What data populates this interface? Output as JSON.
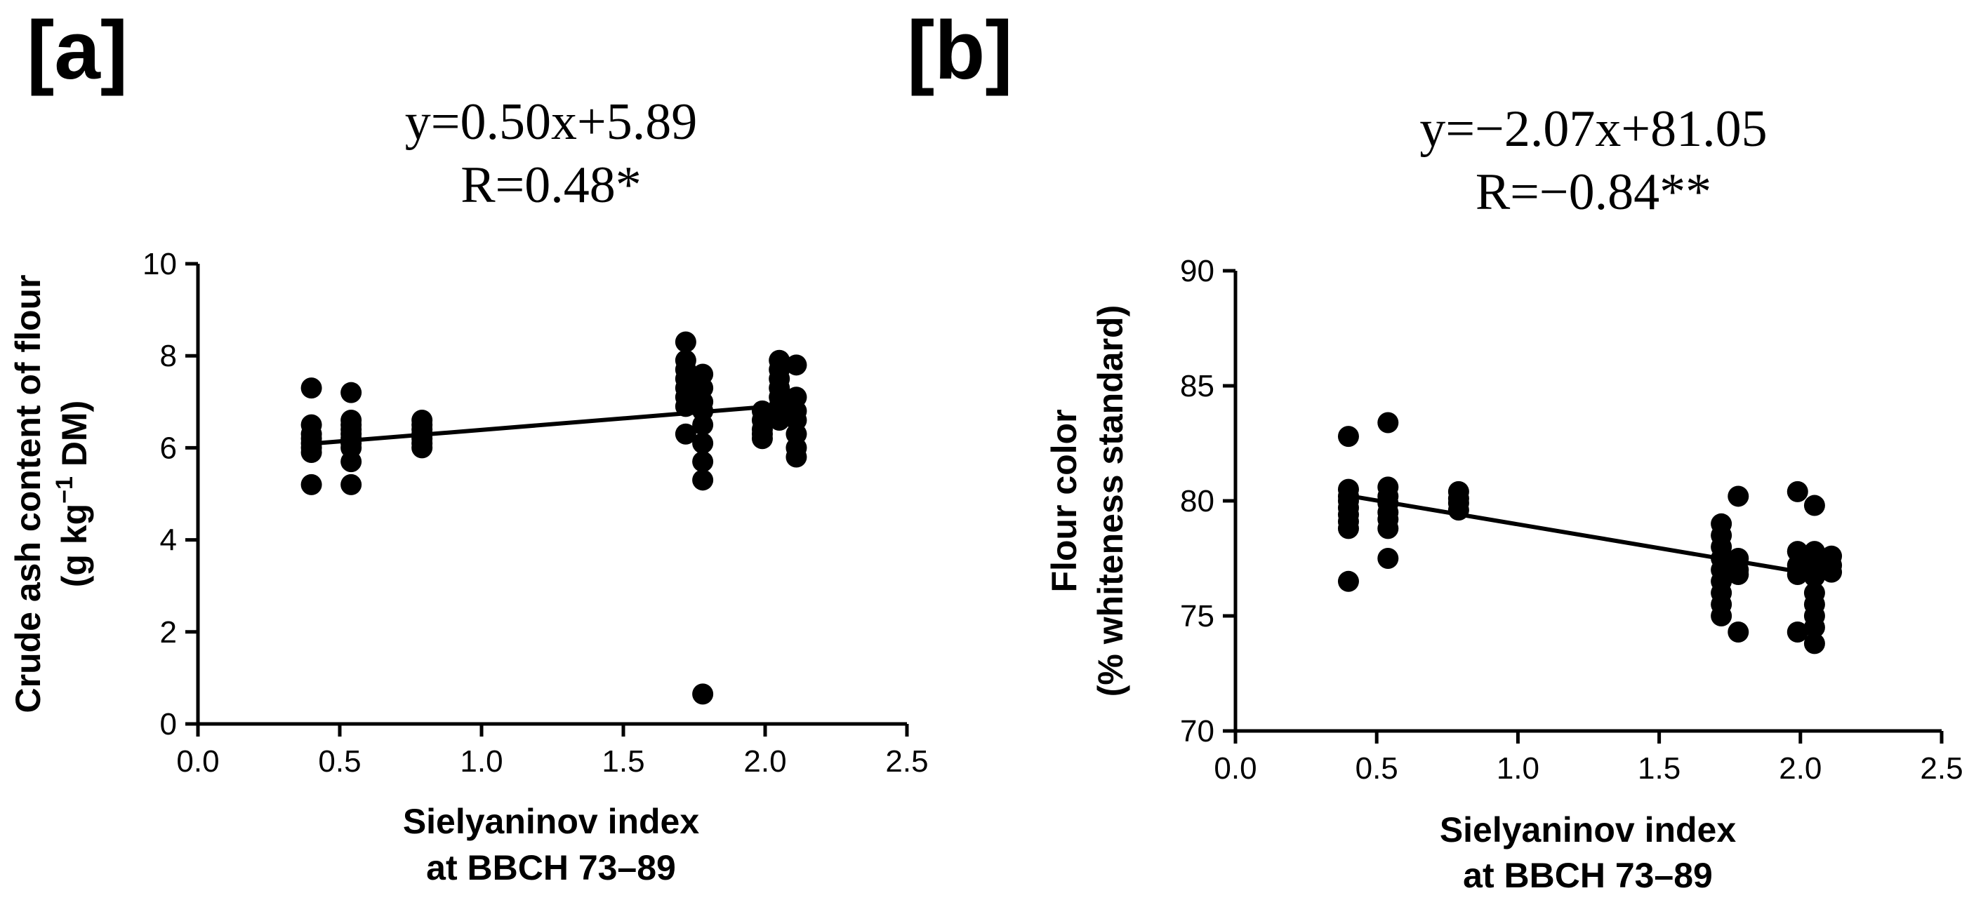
{
  "chart_data": [
    {
      "type": "scatter",
      "panel_label": "[a]",
      "equation": "y=0.50x+5.89",
      "correlation": "R=0.48*",
      "xlabel_line1": "Sielyaninov index",
      "xlabel_line2": "at BBCH 73–89",
      "ylabel_line1": "Crude ash content of flour",
      "ylabel_line2_pre": "(g kg",
      "ylabel_line2_sup": "−1",
      "ylabel_line2_post": " DM)",
      "xlim": [
        0,
        2.5
      ],
      "ylim": [
        0,
        10
      ],
      "xticks": [
        0,
        0.5,
        1.0,
        1.5,
        2.0,
        2.5
      ],
      "xtick_labels": [
        "0.0",
        "0.5",
        "1.0",
        "1.5",
        "2.0",
        "2.5"
      ],
      "yticks": [
        0,
        2,
        4,
        6,
        8,
        10
      ],
      "ytick_labels": [
        "0",
        "2",
        "4",
        "6",
        "8",
        "10"
      ],
      "fit": {
        "slope": 0.5,
        "intercept": 5.89,
        "x_range": [
          0.4,
          2.11
        ]
      },
      "points": [
        [
          0.4,
          7.3
        ],
        [
          0.4,
          6.5
        ],
        [
          0.4,
          6.3
        ],
        [
          0.4,
          6.2
        ],
        [
          0.4,
          6.1
        ],
        [
          0.4,
          6.0
        ],
        [
          0.4,
          5.9
        ],
        [
          0.4,
          5.2
        ],
        [
          0.54,
          7.2
        ],
        [
          0.54,
          6.6
        ],
        [
          0.54,
          6.5
        ],
        [
          0.54,
          6.4
        ],
        [
          0.54,
          6.3
        ],
        [
          0.54,
          6.2
        ],
        [
          0.54,
          6.1
        ],
        [
          0.54,
          6.0
        ],
        [
          0.54,
          5.7
        ],
        [
          0.54,
          5.2
        ],
        [
          0.79,
          6.6
        ],
        [
          0.79,
          6.5
        ],
        [
          0.79,
          6.4
        ],
        [
          0.79,
          6.3
        ],
        [
          0.79,
          6.2
        ],
        [
          0.79,
          6.1
        ],
        [
          0.79,
          6.0
        ],
        [
          1.72,
          8.3
        ],
        [
          1.72,
          7.9
        ],
        [
          1.72,
          7.7
        ],
        [
          1.72,
          7.5
        ],
        [
          1.72,
          7.3
        ],
        [
          1.72,
          7.1
        ],
        [
          1.72,
          6.9
        ],
        [
          1.72,
          6.3
        ],
        [
          1.78,
          7.6
        ],
        [
          1.78,
          7.3
        ],
        [
          1.78,
          7.0
        ],
        [
          1.78,
          6.8
        ],
        [
          1.78,
          6.5
        ],
        [
          1.78,
          6.1
        ],
        [
          1.78,
          5.7
        ],
        [
          1.78,
          5.3
        ],
        [
          1.78,
          0.65
        ],
        [
          1.99,
          6.8
        ],
        [
          1.99,
          6.6
        ],
        [
          1.99,
          6.4
        ],
        [
          1.99,
          6.3
        ],
        [
          1.99,
          6.2
        ],
        [
          2.05,
          7.9
        ],
        [
          2.05,
          7.7
        ],
        [
          2.05,
          7.5
        ],
        [
          2.05,
          7.3
        ],
        [
          2.05,
          7.1
        ],
        [
          2.05,
          6.9
        ],
        [
          2.05,
          6.6
        ],
        [
          2.11,
          7.8
        ],
        [
          2.11,
          7.1
        ],
        [
          2.11,
          6.8
        ],
        [
          2.11,
          6.6
        ],
        [
          2.11,
          6.3
        ],
        [
          2.11,
          6.0
        ],
        [
          2.11,
          5.8
        ]
      ]
    },
    {
      "type": "scatter",
      "panel_label": "[b]",
      "equation": "y=−2.07x+81.05",
      "correlation": "R=−0.84**",
      "xlabel_line1": "Sielyaninov index",
      "xlabel_line2": "at BBCH 73–89",
      "ylabel_line1": "Flour color",
      "ylabel_line2": "(% whiteness standard)",
      "xlim": [
        0,
        2.5
      ],
      "ylim": [
        70,
        90
      ],
      "xticks": [
        0,
        0.5,
        1.0,
        1.5,
        2.0,
        2.5
      ],
      "xtick_labels": [
        "0.0",
        "0.5",
        "1.0",
        "1.5",
        "2.0",
        "2.5"
      ],
      "yticks": [
        70,
        75,
        80,
        85,
        90
      ],
      "ytick_labels": [
        "70",
        "75",
        "80",
        "85",
        "90"
      ],
      "fit": {
        "slope": -2.07,
        "intercept": 81.05,
        "x_range": [
          0.4,
          2.11
        ]
      },
      "points": [
        [
          0.4,
          82.8
        ],
        [
          0.4,
          80.5
        ],
        [
          0.4,
          80.2
        ],
        [
          0.4,
          80.0
        ],
        [
          0.4,
          79.7
        ],
        [
          0.4,
          79.4
        ],
        [
          0.4,
          79.1
        ],
        [
          0.4,
          78.8
        ],
        [
          0.4,
          76.5
        ],
        [
          0.54,
          83.4
        ],
        [
          0.54,
          80.6
        ],
        [
          0.54,
          80.2
        ],
        [
          0.54,
          79.9
        ],
        [
          0.54,
          79.5
        ],
        [
          0.54,
          79.2
        ],
        [
          0.54,
          78.8
        ],
        [
          0.54,
          77.5
        ],
        [
          0.79,
          80.4
        ],
        [
          0.79,
          80.1
        ],
        [
          0.79,
          79.9
        ],
        [
          0.79,
          79.6
        ],
        [
          1.72,
          79.0
        ],
        [
          1.72,
          78.5
        ],
        [
          1.72,
          78.0
        ],
        [
          1.72,
          77.5
        ],
        [
          1.72,
          77.0
        ],
        [
          1.72,
          76.5
        ],
        [
          1.72,
          76.0
        ],
        [
          1.72,
          75.5
        ],
        [
          1.72,
          75.0
        ],
        [
          1.78,
          80.2
        ],
        [
          1.78,
          77.5
        ],
        [
          1.78,
          77.0
        ],
        [
          1.78,
          76.8
        ],
        [
          1.78,
          74.3
        ],
        [
          1.99,
          80.4
        ],
        [
          1.99,
          77.8
        ],
        [
          1.99,
          77.2
        ],
        [
          1.99,
          76.8
        ],
        [
          1.99,
          74.3
        ],
        [
          2.05,
          79.8
        ],
        [
          2.05,
          77.8
        ],
        [
          2.05,
          77.3
        ],
        [
          2.05,
          76.7
        ],
        [
          2.05,
          76.0
        ],
        [
          2.05,
          75.5
        ],
        [
          2.05,
          75.0
        ],
        [
          2.05,
          74.5
        ],
        [
          2.05,
          73.8
        ],
        [
          2.11,
          77.6
        ],
        [
          2.11,
          77.2
        ],
        [
          2.11,
          76.9
        ]
      ]
    }
  ]
}
